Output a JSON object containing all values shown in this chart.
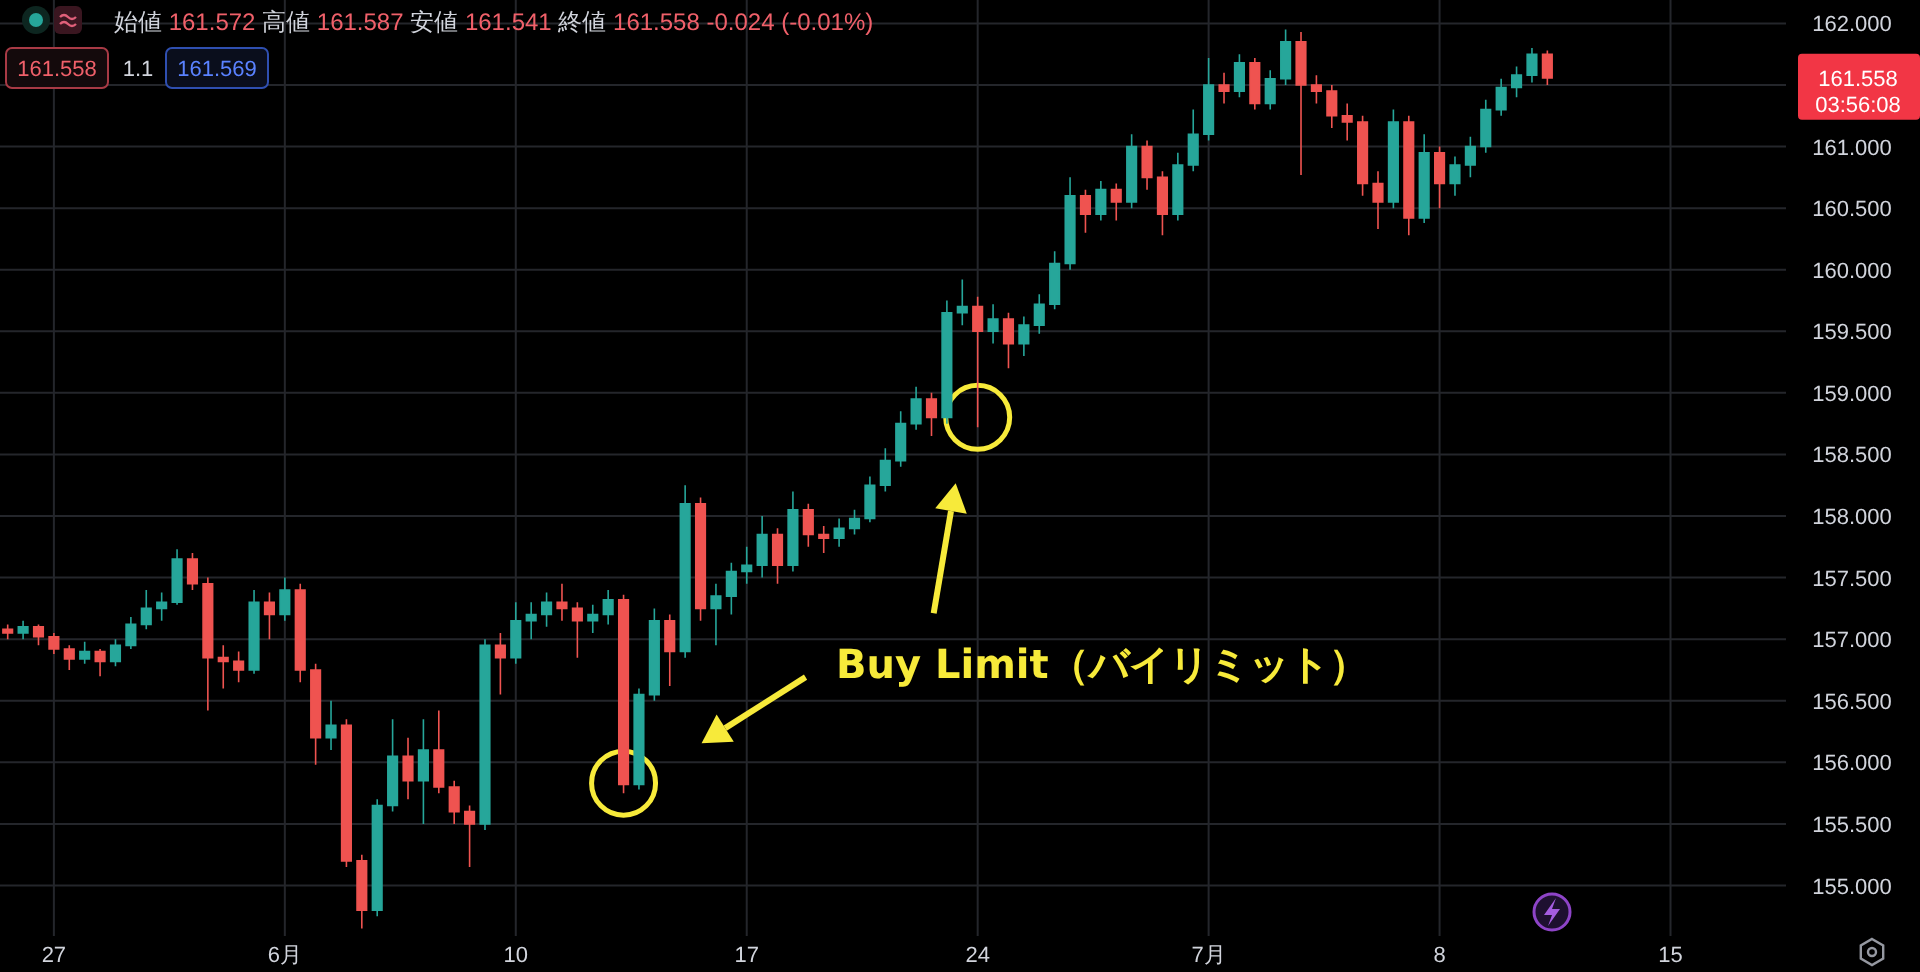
{
  "chart_data": {
    "type": "candlestick",
    "categories": [
      null,
      null,
      null,
      "27",
      null,
      null,
      null,
      null,
      null,
      null,
      null,
      null,
      null,
      null,
      null,
      null,
      null,
      null,
      "6月",
      null,
      null,
      null,
      null,
      null,
      null,
      null,
      null,
      null,
      null,
      null,
      null,
      null,
      null,
      "10",
      null,
      null,
      null,
      null,
      null,
      null,
      null,
      null,
      null,
      null,
      null,
      null,
      null,
      null,
      "17",
      null,
      null,
      null,
      null,
      null,
      null,
      null,
      null,
      null,
      null,
      null,
      null,
      null,
      null,
      "24",
      null,
      null,
      null,
      null,
      null,
      null,
      null,
      null,
      null,
      null,
      null,
      null,
      null,
      null,
      "7月",
      null,
      null,
      null,
      null,
      null,
      null,
      null,
      null,
      null,
      null,
      null,
      null,
      null,
      null,
      "8",
      null,
      null,
      null,
      null,
      null,
      null,
      null,
      null,
      null,
      null,
      null,
      null,
      null,
      null,
      "15",
      null,
      null,
      null,
      null,
      null,
      null,
      null
    ],
    "ohlc": [
      [
        157.08,
        157.12,
        157.0,
        157.05
      ],
      [
        157.05,
        157.15,
        157.0,
        157.1
      ],
      [
        157.1,
        157.12,
        156.95,
        157.02
      ],
      [
        157.02,
        157.05,
        156.88,
        156.92
      ],
      [
        156.92,
        156.95,
        156.75,
        156.84
      ],
      [
        156.84,
        156.98,
        156.8,
        156.9
      ],
      [
        156.9,
        156.92,
        156.7,
        156.82
      ],
      [
        156.82,
        157.0,
        156.78,
        156.95
      ],
      [
        156.95,
        157.18,
        156.92,
        157.12
      ],
      [
        157.12,
        157.4,
        157.08,
        157.25
      ],
      [
        157.25,
        157.38,
        157.15,
        157.3
      ],
      [
        157.3,
        157.73,
        157.28,
        157.65
      ],
      [
        157.65,
        157.7,
        157.4,
        157.45
      ],
      [
        157.45,
        157.5,
        156.42,
        156.85
      ],
      [
        156.85,
        156.95,
        156.6,
        156.82
      ],
      [
        156.82,
        156.9,
        156.65,
        156.75
      ],
      [
        156.75,
        157.4,
        156.72,
        157.3
      ],
      [
        157.3,
        157.38,
        157.0,
        157.2
      ],
      [
        157.2,
        157.5,
        157.15,
        157.4
      ],
      [
        157.4,
        157.45,
        156.65,
        156.75
      ],
      [
        156.75,
        156.8,
        155.98,
        156.2
      ],
      [
        156.2,
        156.5,
        156.1,
        156.3
      ],
      [
        156.3,
        156.35,
        155.15,
        155.2
      ],
      [
        155.2,
        155.25,
        154.65,
        154.8
      ],
      [
        154.8,
        155.7,
        154.75,
        155.65
      ],
      [
        155.65,
        156.35,
        155.6,
        156.05
      ],
      [
        156.05,
        156.2,
        155.7,
        155.85
      ],
      [
        155.85,
        156.35,
        155.5,
        156.1
      ],
      [
        156.1,
        156.42,
        155.75,
        155.8
      ],
      [
        155.8,
        155.85,
        155.5,
        155.6
      ],
      [
        155.6,
        155.65,
        155.15,
        155.5
      ],
      [
        155.5,
        157.0,
        155.45,
        156.95
      ],
      [
        156.95,
        157.05,
        156.55,
        156.85
      ],
      [
        156.85,
        157.3,
        156.8,
        157.15
      ],
      [
        157.15,
        157.3,
        157.0,
        157.2
      ],
      [
        157.2,
        157.38,
        157.1,
        157.3
      ],
      [
        157.3,
        157.45,
        157.15,
        157.25
      ],
      [
        157.25,
        157.3,
        156.85,
        157.15
      ],
      [
        157.15,
        157.28,
        157.05,
        157.2
      ],
      [
        157.2,
        157.4,
        157.12,
        157.32
      ],
      [
        157.32,
        157.36,
        155.75,
        155.82
      ],
      [
        155.82,
        156.6,
        155.78,
        156.55
      ],
      [
        156.55,
        157.25,
        156.5,
        157.15
      ],
      [
        157.15,
        157.2,
        156.62,
        156.9
      ],
      [
        156.9,
        158.25,
        156.85,
        158.1
      ],
      [
        158.1,
        158.15,
        157.15,
        157.25
      ],
      [
        157.25,
        157.45,
        156.95,
        157.35
      ],
      [
        157.35,
        157.62,
        157.2,
        157.55
      ],
      [
        157.55,
        157.75,
        157.45,
        157.6
      ],
      [
        157.6,
        158.0,
        157.5,
        157.85
      ],
      [
        157.85,
        157.9,
        157.45,
        157.6
      ],
      [
        157.6,
        158.2,
        157.55,
        158.05
      ],
      [
        158.05,
        158.1,
        157.75,
        157.85
      ],
      [
        157.85,
        157.92,
        157.7,
        157.82
      ],
      [
        157.82,
        157.98,
        157.75,
        157.9
      ],
      [
        157.9,
        158.05,
        157.85,
        157.98
      ],
      [
        157.98,
        158.32,
        157.95,
        158.25
      ],
      [
        158.25,
        158.55,
        158.2,
        158.45
      ],
      [
        158.45,
        158.85,
        158.4,
        158.75
      ],
      [
        158.75,
        159.05,
        158.7,
        158.95
      ],
      [
        158.95,
        159.0,
        158.65,
        158.8
      ],
      [
        158.8,
        159.75,
        158.75,
        159.65
      ],
      [
        159.65,
        159.92,
        159.55,
        159.7
      ],
      [
        159.7,
        159.78,
        158.72,
        159.5
      ],
      [
        159.5,
        159.72,
        159.4,
        159.6
      ],
      [
        159.6,
        159.65,
        159.2,
        159.4
      ],
      [
        159.4,
        159.62,
        159.3,
        159.55
      ],
      [
        159.55,
        159.8,
        159.48,
        159.72
      ],
      [
        159.72,
        160.15,
        159.68,
        160.05
      ],
      [
        160.05,
        160.75,
        160.0,
        160.6
      ],
      [
        160.6,
        160.65,
        160.3,
        160.45
      ],
      [
        160.45,
        160.72,
        160.4,
        160.65
      ],
      [
        160.65,
        160.7,
        160.4,
        160.55
      ],
      [
        160.55,
        161.1,
        160.5,
        161.0
      ],
      [
        161.0,
        161.05,
        160.65,
        160.75
      ],
      [
        160.75,
        160.8,
        160.28,
        160.45
      ],
      [
        160.45,
        160.95,
        160.4,
        160.85
      ],
      [
        160.85,
        161.3,
        160.8,
        161.1
      ],
      [
        161.1,
        161.72,
        161.05,
        161.5
      ],
      [
        161.5,
        161.6,
        161.35,
        161.45
      ],
      [
        161.45,
        161.75,
        161.4,
        161.68
      ],
      [
        161.68,
        161.72,
        161.3,
        161.35
      ],
      [
        161.35,
        161.62,
        161.3,
        161.55
      ],
      [
        161.55,
        161.95,
        161.5,
        161.85
      ],
      [
        161.85,
        161.93,
        160.77,
        161.5
      ],
      [
        161.5,
        161.58,
        161.35,
        161.45
      ],
      [
        161.45,
        161.5,
        161.15,
        161.25
      ],
      [
        161.25,
        161.35,
        161.05,
        161.2
      ],
      [
        161.2,
        161.25,
        160.6,
        160.7
      ],
      [
        160.7,
        160.8,
        160.33,
        160.55
      ],
      [
        160.55,
        161.3,
        160.5,
        161.2
      ],
      [
        161.2,
        161.25,
        160.28,
        160.42
      ],
      [
        160.42,
        161.1,
        160.38,
        160.95
      ],
      [
        160.95,
        161.0,
        160.5,
        160.7
      ],
      [
        160.7,
        160.92,
        160.6,
        160.85
      ],
      [
        160.85,
        161.08,
        160.75,
        161.0
      ],
      [
        161.0,
        161.38,
        160.95,
        161.3
      ],
      [
        161.3,
        161.55,
        161.25,
        161.48
      ],
      [
        161.48,
        161.65,
        161.4,
        161.58
      ],
      [
        161.58,
        161.8,
        161.52,
        161.75
      ],
      [
        161.75,
        161.78,
        161.5,
        161.558
      ],
      null,
      null,
      null,
      null,
      null,
      null,
      null,
      null,
      null,
      null,
      null,
      null,
      null,
      null,
      null
    ],
    "ylim": [
      154.59,
      162.19
    ],
    "yticks": [
      {
        "value": 155,
        "label": "155.000"
      },
      {
        "value": 155.5,
        "label": "155.500"
      },
      {
        "value": 156,
        "label": "156.000"
      },
      {
        "value": 156.5,
        "label": "156.500"
      },
      {
        "value": 157,
        "label": "157.000"
      },
      {
        "value": 157.5,
        "label": "157.500"
      },
      {
        "value": 158,
        "label": "158.000"
      },
      {
        "value": 158.5,
        "label": "158.500"
      },
      {
        "value": 159,
        "label": "159.000"
      },
      {
        "value": 159.5,
        "label": "159.500"
      },
      {
        "value": 160,
        "label": "160.000"
      },
      {
        "value": 160.5,
        "label": "160.500"
      },
      {
        "value": 161,
        "label": "161.000"
      },
      {
        "value": 161.5,
        "label": null
      },
      {
        "value": 162,
        "label": "162.000"
      }
    ],
    "grid": true,
    "annotations": [
      "始値 161.572 高値 161.587 安値 161.541 終値 161.558 -0.024 (-0.01%)",
      "161.558",
      "1.1",
      "161.569",
      "Buy Limit（バイリミット）",
      "161.558",
      "03:56:08"
    ]
  }
}
